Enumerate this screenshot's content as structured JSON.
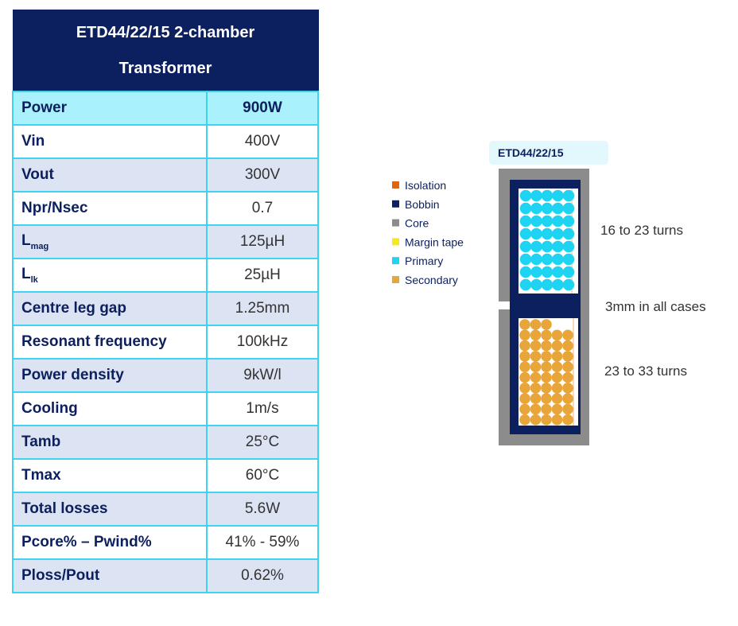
{
  "table": {
    "title_lines": [
      "ETD44/22/15 2-chamber",
      "Transformer"
    ],
    "rows": [
      [
        {
          "label": "Power"
        },
        "900W"
      ],
      [
        {
          "label": "Vin"
        },
        "400V"
      ],
      [
        {
          "label": "Vout"
        },
        "300V"
      ],
      [
        {
          "label": "Npr/Nsec"
        },
        "0.7"
      ],
      [
        {
          "label": "L",
          "sub": "mag"
        },
        "125µH"
      ],
      [
        {
          "label": "L",
          "sub": "lk"
        },
        "25µH"
      ],
      [
        {
          "label": "Centre leg gap"
        },
        "1.25mm"
      ],
      [
        {
          "label": "Resonant frequency"
        },
        "100kHz"
      ],
      [
        {
          "label": "Power density"
        },
        "9kW/l"
      ],
      [
        {
          "label": "Cooling"
        },
        "1m/s"
      ],
      [
        {
          "label": "Tamb"
        },
        "25°C"
      ],
      [
        {
          "label": "Tmax"
        },
        "60°C"
      ],
      [
        {
          "label": "Total losses"
        },
        "5.6W"
      ],
      [
        {
          "label": "Pcore% – Pwind%"
        },
        "41% - 59%"
      ],
      [
        {
          "label": "Ploss/Pout"
        },
        "0.62%"
      ]
    ]
  },
  "diagram": {
    "title": "ETD44/22/15",
    "legend": [
      {
        "name": "Isolation",
        "color": "#e0650f"
      },
      {
        "name": "Bobbin",
        "color": "#0c1f5e"
      },
      {
        "name": "Core",
        "color": "#8c8c8c"
      },
      {
        "name": "Margin tape",
        "color": "#f7e81e"
      },
      {
        "name": "Primary",
        "color": "#1fd3f2"
      },
      {
        "name": "Secondary",
        "color": "#e8a53a"
      }
    ],
    "annotations": [
      "16 to 23 turns",
      "3mm in all cases",
      "23 to 33 turns"
    ]
  }
}
